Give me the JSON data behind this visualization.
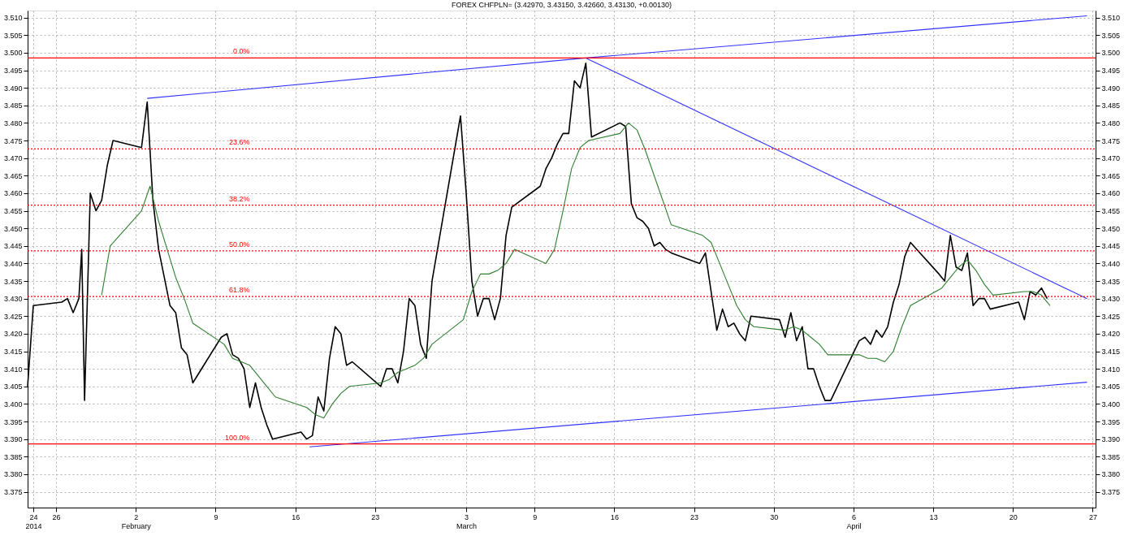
{
  "chart_data": {
    "type": "line",
    "title": "FOREX CHFPLN= (3.42970, 3.43150, 3.42660, 3.43130, +0.00130)",
    "xlim": [
      "2014-01-23T12:00",
      "2014-04-27T06:00"
    ],
    "xticks": [
      {
        "value": "2014-01-24",
        "label": "24\n2014"
      },
      {
        "value": "2014-01-26",
        "label": "26"
      },
      {
        "value": "2014-02-02",
        "label": "2\nFebruary"
      },
      {
        "value": "2014-02-09",
        "label": "9"
      },
      {
        "value": "2014-02-16",
        "label": "16"
      },
      {
        "value": "2014-02-23",
        "label": "23"
      },
      {
        "value": "2014-03-03",
        "label": "3\nMarch"
      },
      {
        "value": "2014-03-09",
        "label": "9"
      },
      {
        "value": "2014-03-16",
        "label": "16"
      },
      {
        "value": "2014-03-23",
        "label": "23"
      },
      {
        "value": "2014-03-30",
        "label": "30"
      },
      {
        "value": "2014-04-06",
        "label": "6\nApril"
      },
      {
        "value": "2014-04-13",
        "label": "13"
      },
      {
        "value": "2014-04-20",
        "label": "20"
      },
      {
        "value": "2014-04-27",
        "label": "27"
      }
    ],
    "ylim": [
      3.3705,
      3.512
    ],
    "yticks": [
      3.375,
      {
        "value": 3.38,
        "label": "3.380"
      },
      3.385,
      {
        "value": 3.39,
        "label": "3.390"
      },
      3.395,
      {
        "value": 3.4,
        "label": "3.400"
      },
      3.405,
      {
        "value": 3.41,
        "label": "3.410"
      },
      3.415,
      {
        "value": 3.42,
        "label": "3.420"
      },
      3.425,
      {
        "value": 3.43,
        "label": "3.430"
      },
      3.435,
      {
        "value": 3.44,
        "label": "3.440"
      },
      3.445,
      {
        "value": 3.45,
        "label": "3.450"
      },
      3.455,
      {
        "value": 3.46,
        "label": "3.460"
      },
      3.465,
      {
        "value": 3.47,
        "label": "3.470"
      },
      3.475,
      {
        "value": 3.48,
        "label": "3.480"
      },
      3.485,
      {
        "value": 3.49,
        "label": "3.490"
      },
      3.495,
      {
        "value": 3.5,
        "label": "3.500"
      },
      3.505,
      {
        "value": 3.51,
        "label": "3.510"
      }
    ],
    "y2lim": [
      3.3705,
      3.512
    ],
    "y2ticks": [
      3.375,
      {
        "value": 3.38,
        "label": "3.380"
      },
      3.385,
      {
        "value": 3.39,
        "label": "3.390"
      },
      3.395,
      {
        "value": 3.4,
        "label": "3.400"
      },
      3.405,
      {
        "value": 3.41,
        "label": "3.410"
      },
      3.415,
      {
        "value": 3.42,
        "label": "3.420"
      },
      3.425,
      {
        "value": 3.43,
        "label": "3.430"
      },
      3.435,
      {
        "value": 3.44,
        "label": "3.440"
      },
      3.445,
      {
        "value": 3.45,
        "label": "3.450"
      },
      3.455,
      {
        "value": 3.46,
        "label": "3.460"
      },
      3.465,
      {
        "value": 3.47,
        "label": "3.470"
      },
      3.475,
      {
        "value": 3.48,
        "label": "3.480"
      },
      3.485,
      {
        "value": 3.49,
        "label": "3.490"
      },
      3.495,
      {
        "value": 3.5,
        "label": "3.500"
      },
      3.505,
      {
        "value": 3.51,
        "label": "3.510"
      }
    ],
    "grid": true,
    "series": [
      {
        "color": "#000000",
        "x": [
          "2014-01-23T12:00",
          "2014-01-24T00:00",
          "2014-01-26T12:00",
          "2014-01-27T00:00",
          "2014-01-27T12:00",
          "2014-01-28T00:00",
          "2014-01-28T06:00",
          "2014-01-28T12:00",
          "2014-01-29T00:00",
          "2014-01-29T12:00",
          "2014-01-30T00:00",
          "2014-01-30T12:00",
          "2014-01-31T00:00",
          "2014-02-02T12:00",
          "2014-02-03T00:00",
          "2014-02-03T12:00",
          "2014-02-04T00:00",
          "2014-02-04T12:00",
          "2014-02-05T00:00",
          "2014-02-05T12:00",
          "2014-02-06T00:00",
          "2014-02-06T12:00",
          "2014-02-07T00:00",
          "2014-02-09T12:00",
          "2014-02-10T00:00",
          "2014-02-10T12:00",
          "2014-02-11T00:00",
          "2014-02-11T12:00",
          "2014-02-12T00:00",
          "2014-02-12T12:00",
          "2014-02-13T00:00",
          "2014-02-13T12:00",
          "2014-02-14T00:00",
          "2014-02-16T12:00",
          "2014-02-17T00:00",
          "2014-02-17T12:00",
          "2014-02-18T00:00",
          "2014-02-18T12:00",
          "2014-02-19T00:00",
          "2014-02-19T12:00",
          "2014-02-20T00:00",
          "2014-02-20T12:00",
          "2014-02-21T00:00",
          "2014-02-23T12:00",
          "2014-02-24T00:00",
          "2014-02-24T12:00",
          "2014-02-25T00:00",
          "2014-02-25T12:00",
          "2014-02-26T00:00",
          "2014-02-26T12:00",
          "2014-02-27T00:00",
          "2014-02-27T12:00",
          "2014-02-28T00:00",
          "2014-03-02T12:00",
          "2014-03-03T00:00",
          "2014-03-03T12:00",
          "2014-03-04T00:00",
          "2014-03-04T12:00",
          "2014-03-05T00:00",
          "2014-03-05T12:00",
          "2014-03-06T00:00",
          "2014-03-06T12:00",
          "2014-03-07T00:00",
          "2014-03-09T12:00",
          "2014-03-10T00:00",
          "2014-03-10T12:00",
          "2014-03-11T00:00",
          "2014-03-11T12:00",
          "2014-03-12T00:00",
          "2014-03-12T12:00",
          "2014-03-13T00:00",
          "2014-03-13T12:00",
          "2014-03-14T00:00",
          "2014-03-16T12:00",
          "2014-03-17T00:00",
          "2014-03-17T12:00",
          "2014-03-18T00:00",
          "2014-03-18T12:00",
          "2014-03-19T00:00",
          "2014-03-19T12:00",
          "2014-03-20T00:00",
          "2014-03-20T12:00",
          "2014-03-21T00:00",
          "2014-03-23T12:00",
          "2014-03-24T00:00",
          "2014-03-24T12:00",
          "2014-03-25T00:00",
          "2014-03-25T12:00",
          "2014-03-26T00:00",
          "2014-03-26T12:00",
          "2014-03-27T00:00",
          "2014-03-27T12:00",
          "2014-03-28T00:00",
          "2014-03-30T12:00",
          "2014-03-31T00:00",
          "2014-03-31T12:00",
          "2014-04-01T00:00",
          "2014-04-01T12:00",
          "2014-04-02T00:00",
          "2014-04-02T12:00",
          "2014-04-03T00:00",
          "2014-04-03T12:00",
          "2014-04-04T00:00",
          "2014-04-06T12:00",
          "2014-04-07T00:00",
          "2014-04-07T12:00",
          "2014-04-08T00:00",
          "2014-04-08T12:00",
          "2014-04-09T00:00",
          "2014-04-09T12:00",
          "2014-04-10T00:00",
          "2014-04-10T12:00",
          "2014-04-11T00:00",
          "2014-04-13T12:00",
          "2014-04-14T00:00",
          "2014-04-14T12:00",
          "2014-04-15T00:00",
          "2014-04-15T12:00",
          "2014-04-16T00:00",
          "2014-04-16T12:00",
          "2014-04-17T00:00",
          "2014-04-17T12:00",
          "2014-04-18T00:00",
          "2014-04-20T12:00",
          "2014-04-21T00:00",
          "2014-04-21T12:00",
          "2014-04-22T00:00",
          "2014-04-22T12:00",
          "2014-04-23T00:00"
        ],
        "values": [
          3.405,
          3.428,
          3.429,
          3.43,
          3.426,
          3.43,
          3.444,
          3.401,
          3.46,
          3.455,
          3.458,
          3.468,
          3.475,
          3.473,
          3.486,
          3.458,
          3.444,
          3.436,
          3.428,
          3.426,
          3.416,
          3.414,
          3.406,
          3.419,
          3.42,
          3.414,
          3.413,
          3.41,
          3.399,
          3.406,
          3.399,
          3.394,
          3.39,
          3.392,
          3.39,
          3.391,
          3.402,
          3.398,
          3.413,
          3.422,
          3.42,
          3.411,
          3.412,
          3.405,
          3.41,
          3.41,
          3.406,
          3.415,
          3.43,
          3.428,
          3.417,
          3.413,
          3.435,
          3.482,
          3.46,
          3.435,
          3.425,
          3.43,
          3.43,
          3.424,
          3.43,
          3.448,
          3.456,
          3.462,
          3.467,
          3.47,
          3.474,
          3.477,
          3.477,
          3.492,
          3.49,
          3.497,
          3.476,
          3.48,
          3.479,
          3.457,
          3.453,
          3.452,
          3.45,
          3.445,
          3.446,
          3.444,
          3.443,
          3.44,
          3.443,
          3.432,
          3.421,
          3.427,
          3.422,
          3.423,
          3.42,
          3.418,
          3.425,
          3.424,
          3.419,
          3.426,
          3.418,
          3.422,
          3.41,
          3.41,
          3.405,
          3.401,
          3.401,
          3.418,
          3.419,
          3.417,
          3.421,
          3.419,
          3.422,
          3.429,
          3.434,
          3.442,
          3.446,
          3.437,
          3.435,
          3.448,
          3.439,
          3.438,
          3.443,
          3.428,
          3.43,
          3.43,
          3.427,
          3.429,
          3.424,
          3.432,
          3.431,
          3.433,
          3.43
        ]
      },
      {
        "color": "#2f7f2f",
        "x": [
          "2014-01-30T00:00",
          "2014-01-30T18:00",
          "2014-02-02T12:00",
          "2014-02-03T06:00",
          "2014-02-04T00:00",
          "2014-02-04T18:00",
          "2014-02-05T12:00",
          "2014-02-06T06:00",
          "2014-02-07T00:00",
          "2014-02-09T18:00",
          "2014-02-10T12:00",
          "2014-02-11T06:00",
          "2014-02-12T00:00",
          "2014-02-12T18:00",
          "2014-02-13T12:00",
          "2014-02-14T06:00",
          "2014-02-17T00:00",
          "2014-02-17T18:00",
          "2014-02-18T12:00",
          "2014-02-19T06:00",
          "2014-02-20T00:00",
          "2014-02-20T18:00",
          "2014-02-23T12:00",
          "2014-02-24T06:00",
          "2014-02-25T00:00",
          "2014-02-25T18:00",
          "2014-02-26T12:00",
          "2014-02-27T06:00",
          "2014-02-28T00:00",
          "2014-03-02T18:00",
          "2014-03-03T12:00",
          "2014-03-04T06:00",
          "2014-03-05T00:00",
          "2014-03-05T18:00",
          "2014-03-06T12:00",
          "2014-03-07T06:00",
          "2014-03-10T00:00",
          "2014-03-10T18:00",
          "2014-03-11T12:00",
          "2014-03-12T06:00",
          "2014-03-13T00:00",
          "2014-03-13T18:00",
          "2014-03-16T12:00",
          "2014-03-17T06:00",
          "2014-03-18T00:00",
          "2014-03-18T18:00",
          "2014-03-19T12:00",
          "2014-03-20T06:00",
          "2014-03-21T00:00",
          "2014-03-23T18:00",
          "2014-03-24T12:00",
          "2014-03-25T06:00",
          "2014-03-26T00:00",
          "2014-03-26T18:00",
          "2014-03-27T12:00",
          "2014-03-28T06:00",
          "2014-03-31T00:00",
          "2014-03-31T18:00",
          "2014-04-01T12:00",
          "2014-04-02T06:00",
          "2014-04-03T00:00",
          "2014-04-03T18:00",
          "2014-04-06T12:00",
          "2014-04-07T06:00",
          "2014-04-08T00:00",
          "2014-04-08T18:00",
          "2014-04-09T12:00",
          "2014-04-10T06:00",
          "2014-04-11T00:00",
          "2014-04-13T18:00",
          "2014-04-14T12:00",
          "2014-04-15T06:00",
          "2014-04-16T00:00",
          "2014-04-16T18:00",
          "2014-04-17T12:00",
          "2014-04-18T06:00",
          "2014-04-21T00:00",
          "2014-04-21T18:00",
          "2014-04-22T12:00",
          "2014-04-23T06:00"
        ],
        "values": [
          3.431,
          3.445,
          3.455,
          3.462,
          3.452,
          3.444,
          3.436,
          3.43,
          3.423,
          3.417,
          3.413,
          3.412,
          3.411,
          3.408,
          3.405,
          3.402,
          3.399,
          3.397,
          3.396,
          3.4,
          3.403,
          3.405,
          3.406,
          3.407,
          3.409,
          3.41,
          3.411,
          3.413,
          3.417,
          3.424,
          3.432,
          3.437,
          3.437,
          3.438,
          3.44,
          3.444,
          3.44,
          3.444,
          3.455,
          3.467,
          3.473,
          3.475,
          3.477,
          3.48,
          3.478,
          3.472,
          3.465,
          3.458,
          3.451,
          3.448,
          3.446,
          3.44,
          3.434,
          3.428,
          3.424,
          3.422,
          3.421,
          3.422,
          3.421,
          3.419,
          3.417,
          3.414,
          3.414,
          3.413,
          3.413,
          3.412,
          3.415,
          3.422,
          3.428,
          3.433,
          3.436,
          3.439,
          3.441,
          3.438,
          3.434,
          3.431,
          3.432,
          3.432,
          3.431,
          3.428
        ]
      },
      {
        "color": "#3333ff",
        "x": [
          "2014-02-03T00:00",
          "2014-03-13T12:00",
          "2014-04-26T12:00"
        ],
        "values": [
          3.487,
          3.4985,
          3.5105
        ]
      },
      {
        "color": "#3333ff",
        "x": [
          "2014-03-13T12:00",
          "2014-04-26T12:00"
        ],
        "values": [
          3.4985,
          3.43
        ]
      },
      {
        "color": "#3333ff",
        "x": [
          "2014-02-17T06:00",
          "2014-04-26T12:00"
        ],
        "values": [
          3.3878,
          3.4062
        ]
      }
    ],
    "ref_lines": [
      {
        "axis": "y",
        "value": 3.4985,
        "color": "#ff0000",
        "line_style": "solid"
      },
      {
        "axis": "y",
        "value": 3.4726,
        "color": "#ff0000",
        "line_style": "dotted"
      },
      {
        "axis": "y",
        "value": 3.4566,
        "color": "#ff0000",
        "line_style": "dotted"
      },
      {
        "axis": "y",
        "value": 3.4436,
        "color": "#ff0000",
        "line_style": "dotted"
      },
      {
        "axis": "y",
        "value": 3.4306,
        "color": "#ff0000",
        "line_style": "dotted"
      },
      {
        "axis": "y",
        "value": 3.3886,
        "color": "#ff0000",
        "line_style": "solid"
      }
    ],
    "annotations": [
      {
        "text": "0.0%",
        "x": "2014-02-12",
        "y": 3.4985
      },
      {
        "text": "23.6%",
        "x": "2014-02-12",
        "y": 3.4726
      },
      {
        "text": "38.2%",
        "x": "2014-02-12",
        "y": 3.4566
      },
      {
        "text": "50.0%",
        "x": "2014-02-12",
        "y": 3.4436
      },
      {
        "text": "61.8%",
        "x": "2014-02-12",
        "y": 3.4306
      },
      {
        "text": "100.0%",
        "x": "2014-02-12",
        "y": 3.3886
      }
    ]
  }
}
